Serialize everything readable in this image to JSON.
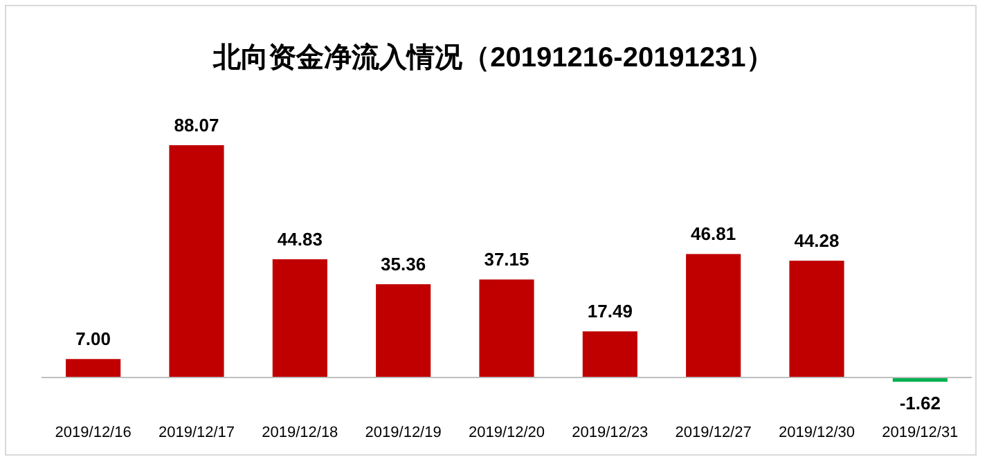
{
  "chart_data": {
    "type": "bar",
    "title": "北向资金净流入情况（20191216-20191231）",
    "categories": [
      "2019/12/16",
      "2019/12/17",
      "2019/12/18",
      "2019/12/19",
      "2019/12/20",
      "2019/12/23",
      "2019/12/27",
      "2019/12/30",
      "2019/12/31"
    ],
    "values": [
      7.0,
      88.07,
      44.83,
      35.36,
      37.15,
      17.49,
      46.81,
      44.28,
      -1.62
    ],
    "colors": [
      "#c00000",
      "#c00000",
      "#c00000",
      "#c00000",
      "#c00000",
      "#c00000",
      "#c00000",
      "#c00000",
      "#00b050"
    ],
    "value_labels": [
      "7.00",
      "88.07",
      "44.83",
      "35.36",
      "37.15",
      "17.49",
      "46.81",
      "44.28",
      "-1.62"
    ]
  }
}
